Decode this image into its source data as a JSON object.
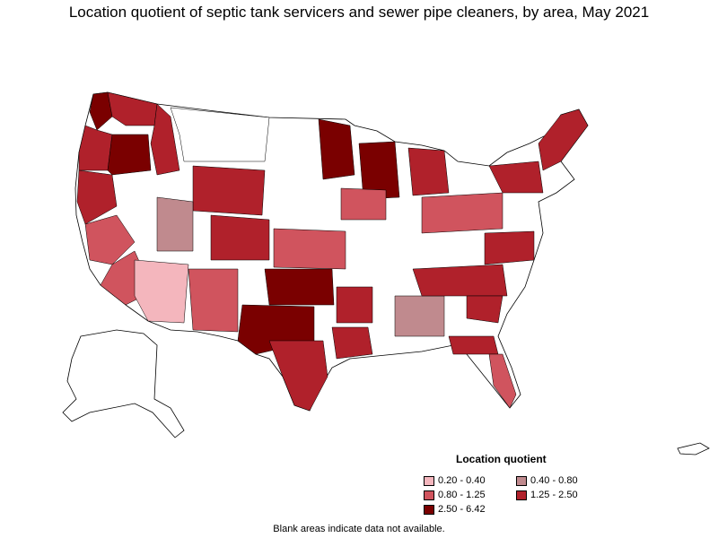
{
  "title": "Location quotient of septic tank servicers and sewer pipe cleaners, by area, May 2021",
  "legend": {
    "title": "Location quotient",
    "items": [
      {
        "label": "0.20 - 0.40",
        "color": "#f4b6bd"
      },
      {
        "label": "0.40 - 0.80",
        "color": "#c08a8e"
      },
      {
        "label": "0.80 - 1.25",
        "color": "#d0545e"
      },
      {
        "label": "1.25 - 2.50",
        "color": "#b0212b"
      },
      {
        "label": "2.50 - 6.42",
        "color": "#7a0000"
      }
    ]
  },
  "footnote": "Blank areas indicate data not available.",
  "colors": {
    "no_data": "#ffffff",
    "outline": "#000000"
  }
}
